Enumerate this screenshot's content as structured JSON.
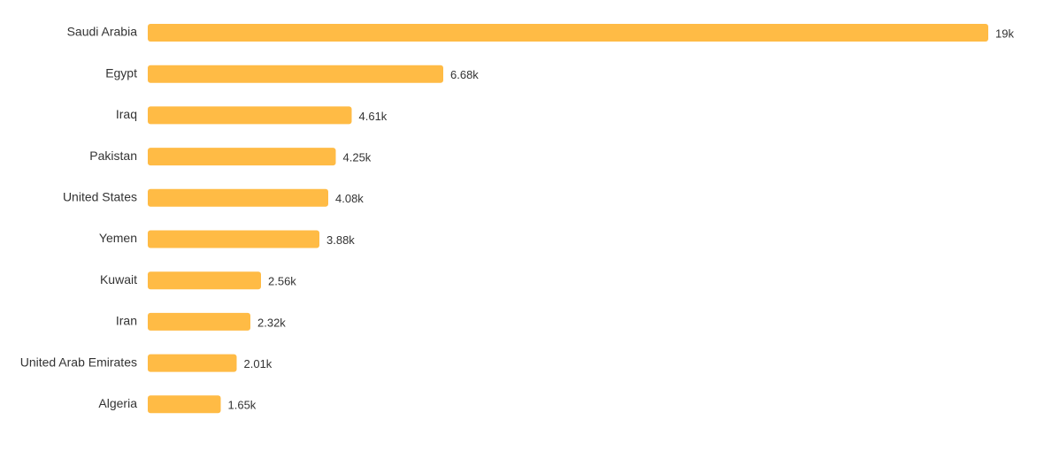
{
  "chart_data": {
    "type": "bar",
    "orientation": "horizontal",
    "categories": [
      "Saudi Arabia",
      "Egypt",
      "Iraq",
      "Pakistan",
      "United States",
      "Yemen",
      "Kuwait",
      "Iran",
      "United Arab Emirates",
      "Algeria"
    ],
    "values": [
      19000,
      6680,
      4610,
      4250,
      4080,
      3880,
      2560,
      2320,
      2010,
      1650
    ],
    "value_labels": [
      "19k",
      "6.68k",
      "4.61k",
      "4.25k",
      "4.08k",
      "3.88k",
      "2.56k",
      "2.32k",
      "2.01k",
      "1.65k"
    ],
    "xlim": [
      0,
      19000
    ],
    "grid": false,
    "legend": "none",
    "bar_color": "#FFBB45"
  }
}
